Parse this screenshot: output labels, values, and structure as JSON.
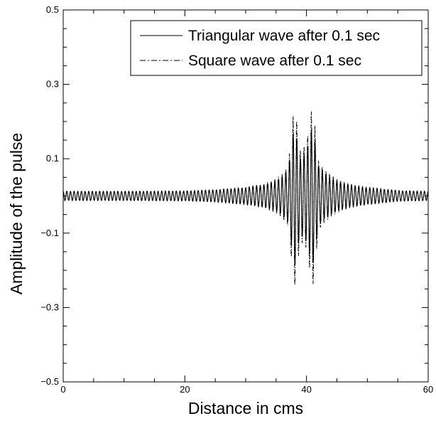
{
  "chart_data": {
    "type": "line",
    "title": "",
    "xlabel": "Distance in cms",
    "ylabel": "Amplitude of the pulse",
    "xlim": [
      0,
      60
    ],
    "ylim": [
      -0.5,
      0.5
    ],
    "x_ticks": [
      0,
      20,
      40,
      60
    ],
    "x_tick_labels": [
      "0",
      "20",
      "40",
      "60"
    ],
    "y_ticks": [
      -0.5,
      -0.3,
      -0.1,
      0.1,
      0.3,
      0.5
    ],
    "y_tick_labels": [
      "−0.5",
      "−0.3",
      "−0.1",
      "0.1",
      "0.3",
      "0.5"
    ],
    "grid": false,
    "legend_position": "top-right",
    "series": [
      {
        "name": "Triangular wave after 0.1 sec",
        "line_style": "solid",
        "color": "#000000",
        "x": [
          0,
          10,
          20,
          25,
          30,
          33,
          35,
          36,
          37,
          38,
          39,
          40,
          41,
          42,
          43,
          44,
          45,
          47,
          50,
          55,
          60
        ],
        "envelope": [
          0.012,
          0.012,
          0.013,
          0.016,
          0.022,
          0.03,
          0.04,
          0.05,
          0.07,
          0.19,
          0.1,
          0.12,
          0.19,
          0.08,
          0.06,
          0.05,
          0.04,
          0.03,
          0.022,
          0.014,
          0.012
        ]
      },
      {
        "name": "Square wave after 0.1 sec",
        "line_style": "dash-dot",
        "color": "#000000",
        "x": [
          0,
          10,
          20,
          25,
          30,
          33,
          35,
          36,
          37,
          38,
          39,
          40,
          41,
          42,
          43,
          44,
          45,
          47,
          50,
          55,
          60
        ],
        "envelope": [
          0.013,
          0.013,
          0.014,
          0.017,
          0.024,
          0.032,
          0.045,
          0.06,
          0.08,
          0.25,
          0.12,
          0.14,
          0.25,
          0.09,
          0.07,
          0.055,
          0.045,
          0.032,
          0.024,
          0.015,
          0.013
        ]
      }
    ]
  }
}
